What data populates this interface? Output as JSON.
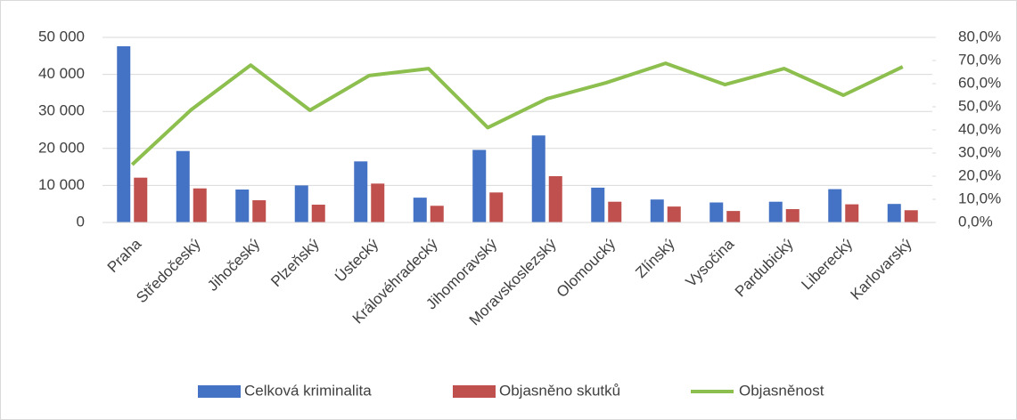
{
  "chart_data": {
    "type": "bar",
    "categories": [
      "Praha",
      "Středočeský",
      "Jihočeský",
      "Plzeňský",
      "Ústecký",
      "Královéhradecký",
      "Jihomoravský",
      "Moravskoslezský",
      "Olomoucký",
      "Zlínský",
      "Vysočina",
      "Pardubický",
      "Liberecký",
      "Karlovarský"
    ],
    "series": [
      {
        "name": "Celková kriminalita",
        "color": "#4472c4",
        "values": [
          47600,
          19300,
          8900,
          10000,
          16500,
          6700,
          19600,
          23500,
          9400,
          6200,
          5400,
          5600,
          9000,
          5000
        ]
      },
      {
        "name": "Objasněno skutků",
        "color": "#c0504d",
        "values": [
          12100,
          9200,
          6000,
          4800,
          10500,
          4500,
          8100,
          12500,
          5600,
          4300,
          3100,
          3600,
          4900,
          3300
        ]
      },
      {
        "name": "Objasněnost",
        "color": "#8cbf4e",
        "type": "line",
        "axis": "y2",
        "values": [
          25,
          48.8,
          68,
          48.5,
          63.5,
          66.5,
          41,
          53.5,
          60.4,
          68.8,
          59.6,
          66.5,
          55,
          67.3
        ]
      }
    ],
    "ylim": [
      0,
      50000
    ],
    "yticks": [
      0,
      {
        "value": 10000,
        "label": "10 000"
      },
      {
        "value": 20000,
        "label": "20 000"
      },
      {
        "value": 30000,
        "label": "30 000"
      },
      {
        "value": 40000,
        "label": "40 000"
      },
      {
        "value": 50000,
        "label": "50 000"
      }
    ],
    "y2lim": [
      0,
      80
    ],
    "y2ticks": [
      {
        "value": 0,
        "label": "0,0%"
      },
      {
        "value": 10,
        "label": "10,0%"
      },
      {
        "value": 20,
        "label": "20,0%"
      },
      {
        "value": 30,
        "label": "30,0%"
      },
      {
        "value": 40,
        "label": "40,0%"
      },
      {
        "value": 50,
        "label": "50,0%"
      },
      {
        "value": 60,
        "label": "60,0%"
      },
      {
        "value": 70,
        "label": "70,0%"
      },
      {
        "value": 80,
        "label": "80,0%"
      }
    ],
    "grid": true,
    "legend": "bottom"
  }
}
